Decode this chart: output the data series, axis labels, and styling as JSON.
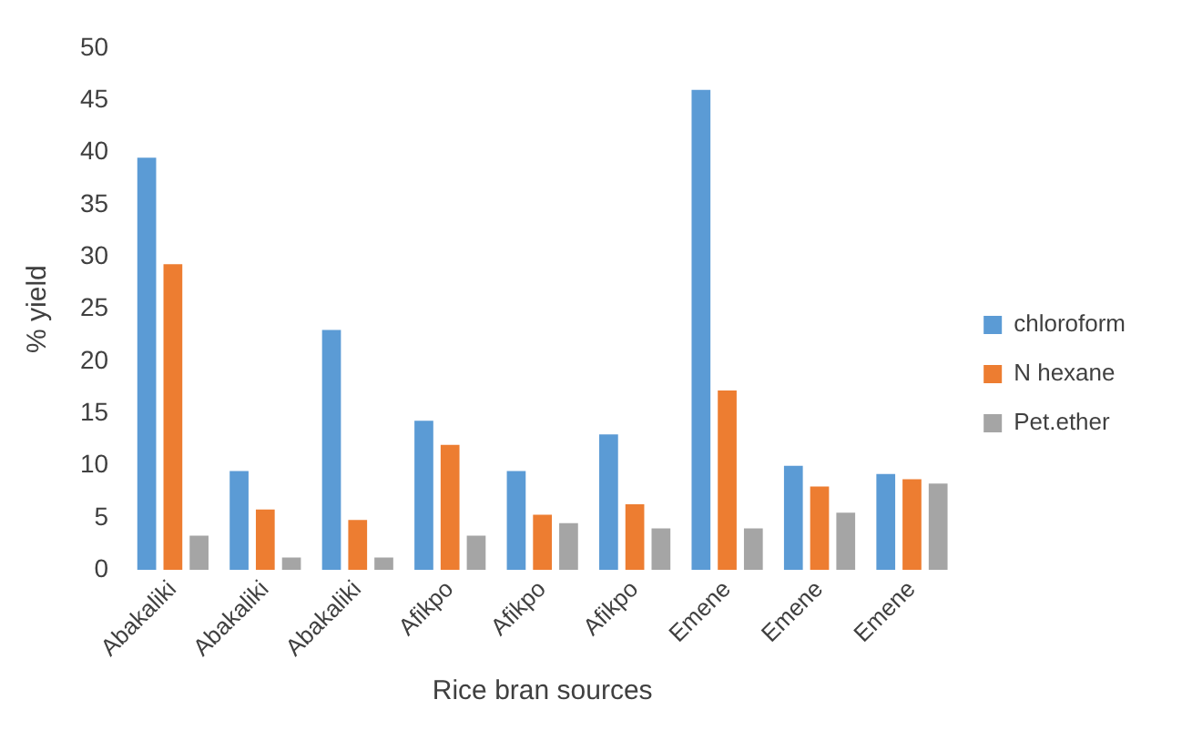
{
  "chart_data": {
    "type": "bar",
    "xlabel": "Rice bran sources",
    "ylabel": "% yield",
    "categories": [
      "Abakaliki",
      "Abakaliki",
      "Abakaliki",
      "Afikpo",
      "Afikpo",
      "Afikpo",
      "Emene",
      "Emene",
      "Emene"
    ],
    "series": [
      {
        "name": "chloroform",
        "color": "#5b9bd5",
        "values": [
          39.5,
          9.5,
          23,
          14.3,
          9.5,
          13,
          46,
          10,
          9.2
        ]
      },
      {
        "name": "N hexane",
        "color": "#ed7d31",
        "values": [
          29.3,
          5.8,
          4.8,
          12,
          5.3,
          6.3,
          17.2,
          8,
          8.7
        ]
      },
      {
        "name": "Pet.ether",
        "color": "#a5a5a5",
        "values": [
          3.3,
          1.2,
          1.2,
          3.3,
          4.5,
          4,
          4,
          5.5,
          8.3
        ]
      }
    ],
    "ylim": [
      0,
      50
    ],
    "yticks": [
      0,
      5,
      10,
      15,
      20,
      25,
      30,
      35,
      40,
      45,
      50
    ],
    "grid": false,
    "legend": "right"
  }
}
